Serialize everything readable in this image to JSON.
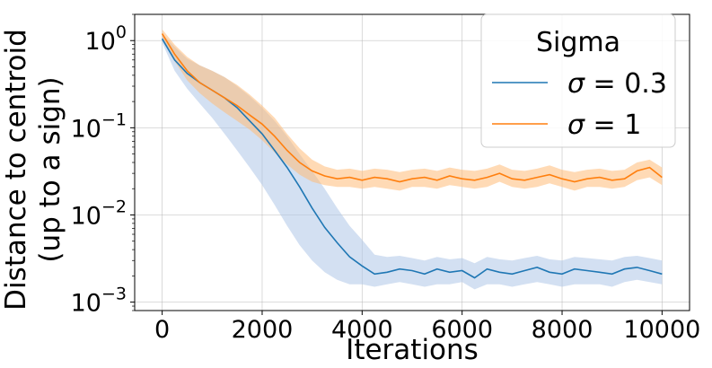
{
  "chart_data": {
    "type": "line",
    "title": "",
    "xlabel": "Iterations",
    "ylabel_line1": "Distance to centroid",
    "ylabel_line2": "(up to a sign)",
    "y_scale": "log",
    "xlim": [
      -550,
      10550
    ],
    "ylim": [
      0.0008,
      2.0
    ],
    "grid": true,
    "x_ticks": [
      0,
      2000,
      4000,
      6000,
      8000,
      10000
    ],
    "x_tick_labels": [
      "0",
      "2000",
      "4000",
      "6000",
      "8000",
      "10000"
    ],
    "y_ticks": [
      {
        "value": 1,
        "base": "10",
        "exp": "0"
      },
      {
        "value": 0.1,
        "base": "10",
        "exp": "−1"
      },
      {
        "value": 0.01,
        "base": "10",
        "exp": "−2"
      },
      {
        "value": 0.001,
        "base": "10",
        "exp": "−3"
      }
    ],
    "legend": {
      "title": "Sigma",
      "position": "upper right"
    },
    "series": [
      {
        "name": "σ = 0.3",
        "name_sym": "σ",
        "name_val": " = 0.3",
        "color": "#1f77b4",
        "band_color": "#aec7e8",
        "x": [
          0,
          250,
          500,
          750,
          1000,
          1250,
          1500,
          1750,
          2000,
          2250,
          2500,
          2750,
          3000,
          3250,
          3500,
          3750,
          4000,
          4250,
          4500,
          4750,
          5000,
          5250,
          5500,
          5750,
          6000,
          6250,
          6500,
          6750,
          7000,
          7250,
          7500,
          7750,
          8000,
          8250,
          8500,
          8750,
          9000,
          9250,
          9500,
          9750,
          10000
        ],
        "y": [
          1.05,
          0.6,
          0.42,
          0.33,
          0.27,
          0.22,
          0.17,
          0.12,
          0.085,
          0.055,
          0.035,
          0.021,
          0.012,
          0.0072,
          0.0048,
          0.0033,
          0.0026,
          0.0021,
          0.0022,
          0.0024,
          0.0023,
          0.0021,
          0.0024,
          0.0022,
          0.0023,
          0.0019,
          0.0024,
          0.0022,
          0.0021,
          0.0023,
          0.0025,
          0.0022,
          0.0021,
          0.0024,
          0.0023,
          0.0022,
          0.0021,
          0.0024,
          0.0025,
          0.0023,
          0.0021
        ],
        "y_low": [
          0.95,
          0.45,
          0.28,
          0.19,
          0.13,
          0.085,
          0.055,
          0.035,
          0.022,
          0.013,
          0.0075,
          0.0045,
          0.003,
          0.0022,
          0.0018,
          0.0016,
          0.0016,
          0.0015,
          0.0016,
          0.0017,
          0.0016,
          0.0015,
          0.0016,
          0.0016,
          0.0017,
          0.0014,
          0.0016,
          0.0016,
          0.0015,
          0.0016,
          0.0017,
          0.0016,
          0.0015,
          0.0016,
          0.0016,
          0.0016,
          0.0015,
          0.0017,
          0.0018,
          0.0017,
          0.0016
        ],
        "y_high": [
          1.2,
          0.85,
          0.62,
          0.52,
          0.45,
          0.38,
          0.3,
          0.23,
          0.17,
          0.12,
          0.08,
          0.05,
          0.032,
          0.02,
          0.012,
          0.0075,
          0.0052,
          0.0035,
          0.0033,
          0.0034,
          0.0032,
          0.003,
          0.0033,
          0.0031,
          0.0032,
          0.0028,
          0.0033,
          0.0031,
          0.003,
          0.0032,
          0.0034,
          0.0031,
          0.003,
          0.0033,
          0.0032,
          0.0031,
          0.003,
          0.0033,
          0.0034,
          0.0032,
          0.003
        ]
      },
      {
        "name": "σ = 1",
        "name_sym": "σ",
        "name_val": " = 1",
        "color": "#ff7f0e",
        "band_color": "#ffbb78",
        "x": [
          0,
          250,
          500,
          750,
          1000,
          1250,
          1500,
          1750,
          2000,
          2250,
          2500,
          2750,
          3000,
          3250,
          3500,
          3750,
          4000,
          4250,
          4500,
          4750,
          5000,
          5250,
          5500,
          5750,
          6000,
          6250,
          6500,
          6750,
          7000,
          7250,
          7500,
          7750,
          8000,
          8250,
          8500,
          8750,
          9000,
          9250,
          9500,
          9750,
          10000
        ],
        "y": [
          1.2,
          0.7,
          0.45,
          0.33,
          0.27,
          0.22,
          0.18,
          0.14,
          0.11,
          0.08,
          0.055,
          0.04,
          0.032,
          0.028,
          0.026,
          0.027,
          0.025,
          0.027,
          0.026,
          0.024,
          0.026,
          0.027,
          0.025,
          0.028,
          0.026,
          0.025,
          0.027,
          0.03,
          0.026,
          0.025,
          0.027,
          0.029,
          0.026,
          0.024,
          0.026,
          0.027,
          0.025,
          0.026,
          0.032,
          0.035,
          0.027
        ],
        "y_low": [
          1.08,
          0.58,
          0.35,
          0.25,
          0.19,
          0.15,
          0.12,
          0.095,
          0.072,
          0.052,
          0.038,
          0.029,
          0.024,
          0.022,
          0.021,
          0.021,
          0.02,
          0.021,
          0.02,
          0.019,
          0.021,
          0.021,
          0.02,
          0.022,
          0.021,
          0.02,
          0.021,
          0.024,
          0.021,
          0.02,
          0.021,
          0.023,
          0.021,
          0.019,
          0.021,
          0.021,
          0.02,
          0.021,
          0.025,
          0.027,
          0.022
        ],
        "y_high": [
          1.35,
          0.9,
          0.65,
          0.52,
          0.45,
          0.38,
          0.31,
          0.24,
          0.18,
          0.13,
          0.085,
          0.058,
          0.043,
          0.036,
          0.033,
          0.034,
          0.032,
          0.034,
          0.033,
          0.031,
          0.033,
          0.034,
          0.032,
          0.035,
          0.033,
          0.032,
          0.034,
          0.038,
          0.033,
          0.032,
          0.034,
          0.037,
          0.033,
          0.031,
          0.033,
          0.034,
          0.032,
          0.033,
          0.04,
          0.043,
          0.035
        ]
      }
    ]
  }
}
